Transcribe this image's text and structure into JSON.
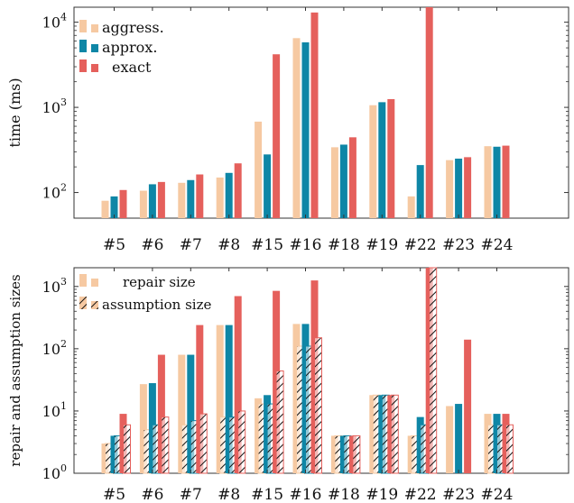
{
  "colors": {
    "aggress": "#f6c9a2",
    "approx": "#0e86a6",
    "exact": "#e5605c",
    "hatch": "#111111",
    "axis": "#333333"
  },
  "chart_data": [
    {
      "type": "bar",
      "scale": "log",
      "ylabel": "time (ms)",
      "ylim": [
        50,
        15000
      ],
      "yticks": [
        100,
        1000,
        10000
      ],
      "ytick_labels": [
        {
          "base": "10",
          "exp": "2"
        },
        {
          "base": "10",
          "exp": "3"
        },
        {
          "base": "10",
          "exp": "4"
        }
      ],
      "legend_position": "top-left",
      "categories": [
        "#5",
        "#6",
        "#7",
        "#8",
        "#15",
        "#16",
        "#18",
        "#19",
        "#22",
        "#23",
        "#24"
      ],
      "series": [
        {
          "name": "aggress.",
          "color_key": "aggress",
          "values": [
            80,
            105,
            130,
            150,
            680,
            6500,
            340,
            1060,
            90,
            240,
            350
          ]
        },
        {
          "name": "approx.",
          "color_key": "approx",
          "values": [
            90,
            125,
            140,
            170,
            280,
            5800,
            365,
            1150,
            210,
            250,
            345
          ]
        },
        {
          "name": "exact",
          "color_key": "exact",
          "values": [
            107,
            133,
            163,
            220,
            4200,
            13000,
            445,
            1250,
            15000,
            260,
            355
          ]
        }
      ]
    },
    {
      "type": "bar",
      "scale": "log",
      "ylabel": "repair and assumption sizes",
      "ylim": [
        1,
        2000
      ],
      "yticks": [
        1,
        10,
        100,
        1000
      ],
      "ytick_labels": [
        {
          "base": "10",
          "exp": "0"
        },
        {
          "base": "10",
          "exp": "1"
        },
        {
          "base": "10",
          "exp": "2"
        },
        {
          "base": "10",
          "exp": "3"
        }
      ],
      "legend_position": "top-left",
      "categories": [
        "#5",
        "#6",
        "#7",
        "#8",
        "#15",
        "#16",
        "#18",
        "#19",
        "#22",
        "#23",
        "#24"
      ],
      "legend": [
        {
          "name": "repair size",
          "style": "solid"
        },
        {
          "name": "assumption size",
          "style": "hatched"
        }
      ],
      "series": [
        {
          "name": "repair size",
          "color_key": "aggress",
          "style": "solid",
          "values": [
            3,
            27,
            80,
            240,
            16,
            250,
            4,
            18,
            4,
            12,
            9
          ]
        },
        {
          "name": "assumption size",
          "color_key": "aggress",
          "style": "hatched",
          "values": [
            3,
            5,
            6,
            8,
            13,
            110,
            4,
            18,
            4,
            null,
            6
          ]
        },
        {
          "name": "repair size",
          "color_key": "approx",
          "style": "solid",
          "values": [
            4,
            28,
            80,
            240,
            18,
            250,
            4,
            18,
            8,
            13,
            9
          ]
        },
        {
          "name": "assumption size",
          "color_key": "approx",
          "style": "hatched",
          "values": [
            4,
            6,
            7,
            8,
            13,
            110,
            4,
            18,
            6,
            null,
            6
          ]
        },
        {
          "name": "repair size",
          "color_key": "exact",
          "style": "solid",
          "values": [
            9,
            80,
            240,
            700,
            850,
            1250,
            4,
            18,
            2000,
            140,
            9
          ]
        },
        {
          "name": "assumption size",
          "color_key": "exact",
          "style": "hatched",
          "values": [
            6,
            8,
            9,
            10,
            44,
            150,
            4,
            18,
            2000,
            null,
            6
          ]
        }
      ]
    }
  ]
}
